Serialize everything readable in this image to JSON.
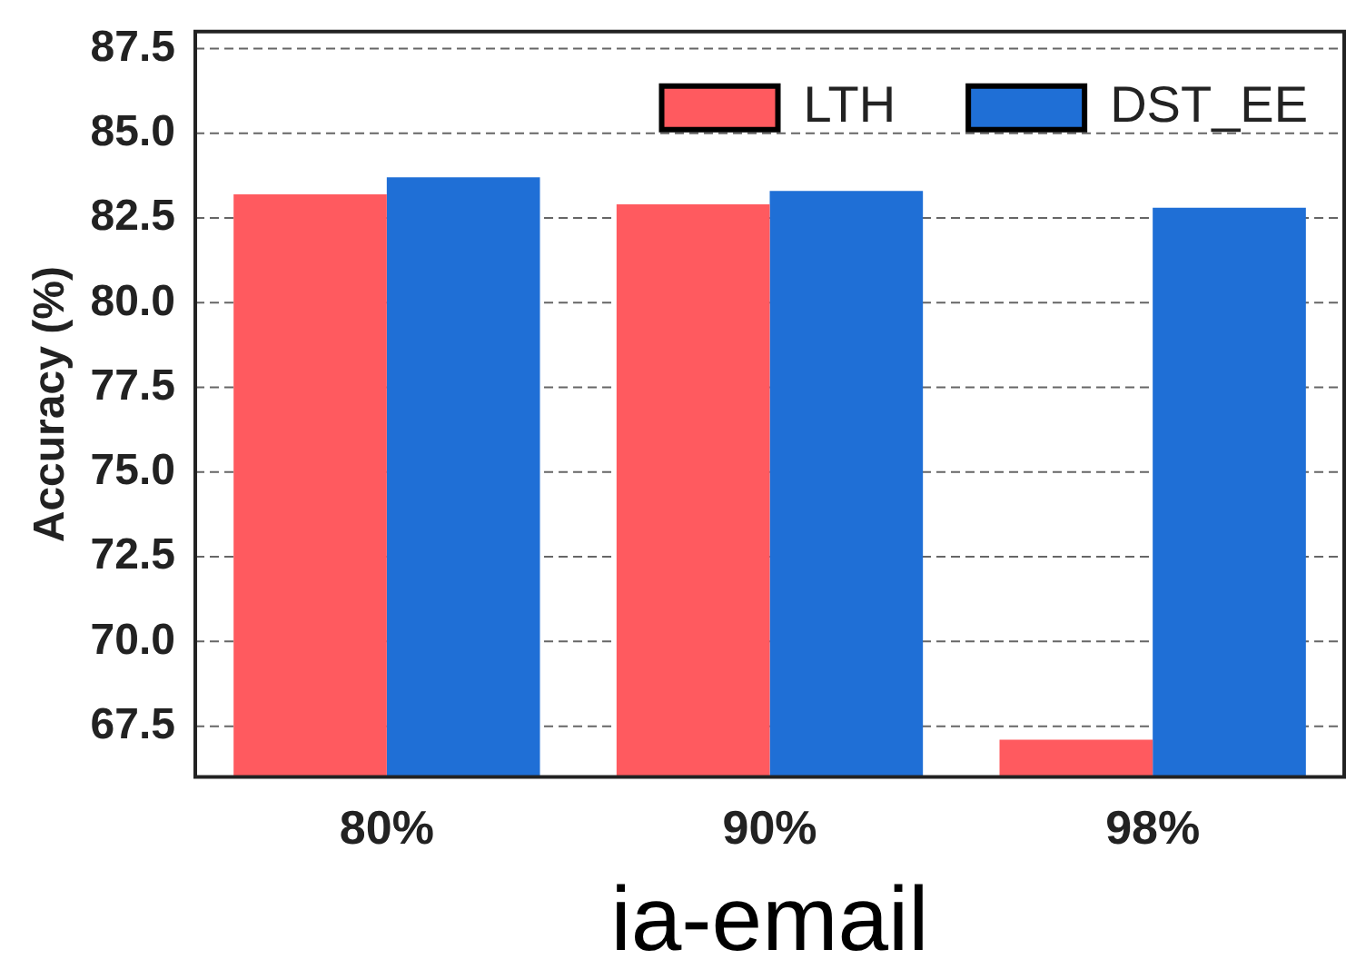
{
  "chart_data": {
    "type": "bar",
    "xlabel": "ia-email",
    "ylabel": "Accuracy (%)",
    "categories": [
      "80%",
      "90%",
      "98%"
    ],
    "series": [
      {
        "name": "LTH",
        "color": "#ff5a5f",
        "values": [
          83.2,
          82.9,
          67.1
        ]
      },
      {
        "name": "DST_EE",
        "color": "#1f6fd6",
        "values": [
          83.7,
          83.3,
          82.8
        ]
      }
    ],
    "ylim": [
      66,
      88
    ],
    "yticks": [
      67.5,
      {
        "value": 70,
        "label": "70.0"
      },
      72.5,
      {
        "value": 75,
        "label": "75.0"
      },
      77.5,
      {
        "value": 80,
        "label": "80.0"
      },
      82.5,
      {
        "value": 85,
        "label": "85.0"
      },
      87.5
    ],
    "grid": "y",
    "legend": "top right"
  }
}
